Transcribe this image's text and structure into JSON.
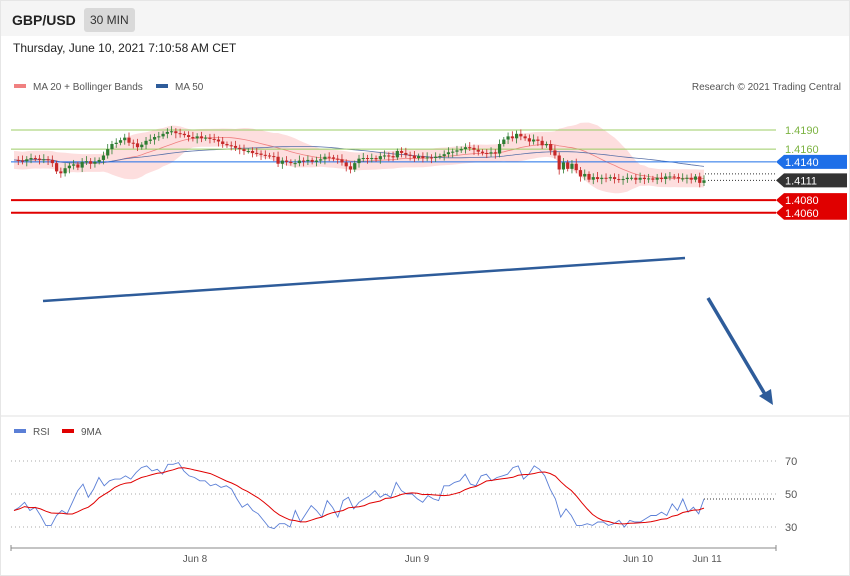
{
  "header": {
    "symbol": "GBP/USD",
    "timeframe": "30 MIN",
    "datetime": "Thursday, June 10, 2021 7:10:58 AM CET",
    "copyright": "Research © 2021 Trading Central"
  },
  "legend_main": [
    {
      "label": "MA 20 + Bollinger Bands",
      "color": "#f08080"
    },
    {
      "label": "MA 50",
      "color": "#2e5c9a"
    }
  ],
  "legend_rsi": [
    {
      "label": "RSI",
      "color": "#5b7fd6"
    },
    {
      "label": "9MA",
      "color": "#e00000"
    }
  ],
  "colors": {
    "bull": "#2e7d32",
    "bear": "#c62828",
    "resistance": "#9ccc65",
    "pivot": "#1e6fe8",
    "support": "#e00000",
    "trendline": "#2e5c9a",
    "bbfill": "#fddede"
  },
  "chart_data": [
    {
      "type": "line",
      "title": "",
      "x_ticks": [
        "Jun 8",
        "Jun 9",
        "Jun 10",
        "Jun 11"
      ],
      "y_range": [
        1.405,
        1.421
      ],
      "levels": [
        {
          "label": "1.4190",
          "value": 1.419,
          "kind": "resistance"
        },
        {
          "label": "1.4160",
          "value": 1.416,
          "kind": "resistance"
        },
        {
          "label": "1.4140",
          "value": 1.414,
          "kind": "pivot"
        },
        {
          "label": "1.4111",
          "value": 1.4111,
          "kind": "last"
        },
        {
          "label": "1.4080",
          "value": 1.408,
          "kind": "support"
        },
        {
          "label": "1.4060",
          "value": 1.406,
          "kind": "support"
        }
      ],
      "price": [
        1.4143,
        1.4142,
        1.4141,
        1.4144,
        1.4146,
        1.4145,
        1.4143,
        1.4144,
        1.4143,
        1.4138,
        1.4125,
        1.4122,
        1.413,
        1.4134,
        1.4136,
        1.4131,
        1.414,
        1.4141,
        1.4137,
        1.414,
        1.4143,
        1.415,
        1.416,
        1.4168,
        1.417,
        1.4174,
        1.4178,
        1.417,
        1.4169,
        1.4163,
        1.4167,
        1.4173,
        1.4175,
        1.4179,
        1.418,
        1.4184,
        1.4187,
        1.4188,
        1.4185,
        1.4184,
        1.4182,
        1.4179,
        1.4177,
        1.418,
        1.4177,
        1.4178,
        1.4176,
        1.4175,
        1.4172,
        1.4168,
        1.4166,
        1.4165,
        1.4162,
        1.416,
        1.4157,
        1.4157,
        1.4154,
        1.4153,
        1.4151,
        1.415,
        1.4149,
        1.4148,
        1.4137,
        1.4142,
        1.414,
        1.4138,
        1.4138,
        1.4142,
        1.4141,
        1.4143,
        1.414,
        1.4142,
        1.4144,
        1.4148,
        1.4147,
        1.4145,
        1.4144,
        1.4139,
        1.4133,
        1.4128,
        1.4138,
        1.4145,
        1.4146,
        1.4145,
        1.4146,
        1.4144,
        1.4149,
        1.415,
        1.4149,
        1.4147,
        1.4157,
        1.4154,
        1.4151,
        1.415,
        1.4146,
        1.4149,
        1.4146,
        1.4147,
        1.4146,
        1.4148,
        1.4149,
        1.4152,
        1.4155,
        1.4156,
        1.4158,
        1.416,
        1.4163,
        1.4162,
        1.4159,
        1.4156,
        1.4154,
        1.4153,
        1.4155,
        1.4153,
        1.4168,
        1.4175,
        1.418,
        1.4177,
        1.4184,
        1.418,
        1.4177,
        1.4172,
        1.4175,
        1.4173,
        1.4166,
        1.4168,
        1.4158,
        1.415,
        1.4128,
        1.4139,
        1.4129,
        1.4137,
        1.4127,
        1.4117,
        1.4121,
        1.4112,
        1.4116,
        1.4113,
        1.4115,
        1.4114,
        1.4116,
        1.4113,
        1.4112,
        1.4113,
        1.4115,
        1.4115,
        1.4112,
        1.4115,
        1.4113,
        1.4114,
        1.4112,
        1.4115,
        1.4113,
        1.4117,
        1.4117,
        1.4116,
        1.4114,
        1.4114,
        1.4115,
        1.4112,
        1.4117,
        1.4107,
        1.4111
      ],
      "rsi": [
        40,
        42,
        45,
        40,
        42,
        37,
        31,
        31,
        37,
        40,
        38,
        45,
        52,
        56,
        48,
        53,
        60,
        55,
        58,
        59,
        59,
        61,
        59,
        63,
        66,
        67,
        64,
        65,
        62,
        68,
        68,
        69,
        64,
        61,
        60,
        58,
        58,
        55,
        56,
        54,
        55,
        53,
        47,
        42,
        44,
        40,
        38,
        34,
        30,
        29,
        32,
        32,
        30,
        40,
        33,
        38,
        43,
        40,
        36,
        46,
        42,
        36,
        46,
        48,
        41,
        45,
        47,
        49,
        52,
        48,
        50,
        48,
        57,
        52,
        50,
        50,
        47,
        45,
        49,
        47,
        46,
        55,
        55,
        57,
        58,
        62,
        56,
        55,
        61,
        62,
        58,
        60,
        61,
        62,
        66,
        67,
        59,
        62,
        67,
        65,
        61,
        53,
        47,
        36,
        41,
        37,
        31,
        31,
        32,
        31,
        33,
        33,
        31,
        32,
        34,
        30,
        34,
        33,
        33,
        35,
        37,
        37,
        39,
        37,
        44,
        40,
        47,
        39,
        42,
        38,
        47
      ],
      "rsi_ticks": [
        30,
        50,
        70
      ]
    }
  ]
}
